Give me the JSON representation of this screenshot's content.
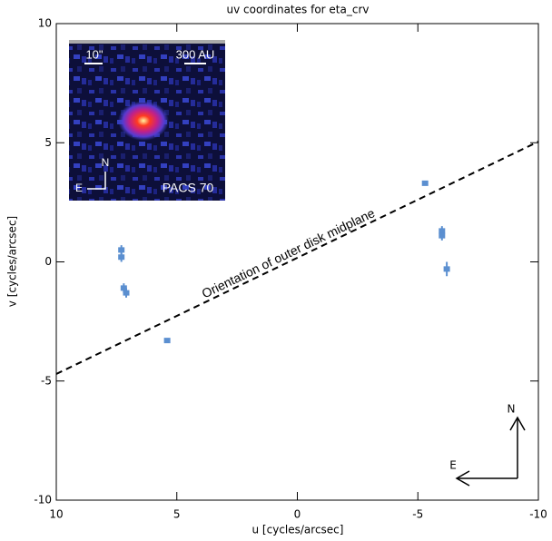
{
  "chart_data": {
    "type": "scatter",
    "title": "uv coordinates for eta_crv",
    "x_label": "u [cycles/arcsec]",
    "y_label": "v [cycles/arcsec]",
    "xlim": [
      10,
      -10
    ],
    "ylim": [
      -10,
      10
    ],
    "xticks": [
      10,
      5,
      0,
      -5,
      -10
    ],
    "yticks": [
      -10,
      -5,
      0,
      5,
      10
    ],
    "series": [
      {
        "color": "#5b8fd0",
        "x": [
          7.3,
          7.3,
          7.2,
          7.1,
          5.4,
          -5.3,
          -6.0,
          -6.0,
          -6.2
        ],
        "values": [
          0.5,
          0.2,
          -1.1,
          -1.3,
          -3.3,
          3.3,
          1.3,
          1.1,
          -0.3
        ],
        "yerr": [
          0.2,
          0.2,
          0.2,
          0.2,
          0.1,
          0.1,
          0.2,
          0.2,
          0.3
        ]
      }
    ],
    "annotation": "Orientation of outer disk midplane",
    "compass": {
      "north": "N",
      "east": "E"
    },
    "inset": {
      "scale_angular": "10\"",
      "scale_physical": "300 AU",
      "north": "N",
      "east": "E",
      "label": "PACS 70"
    }
  }
}
